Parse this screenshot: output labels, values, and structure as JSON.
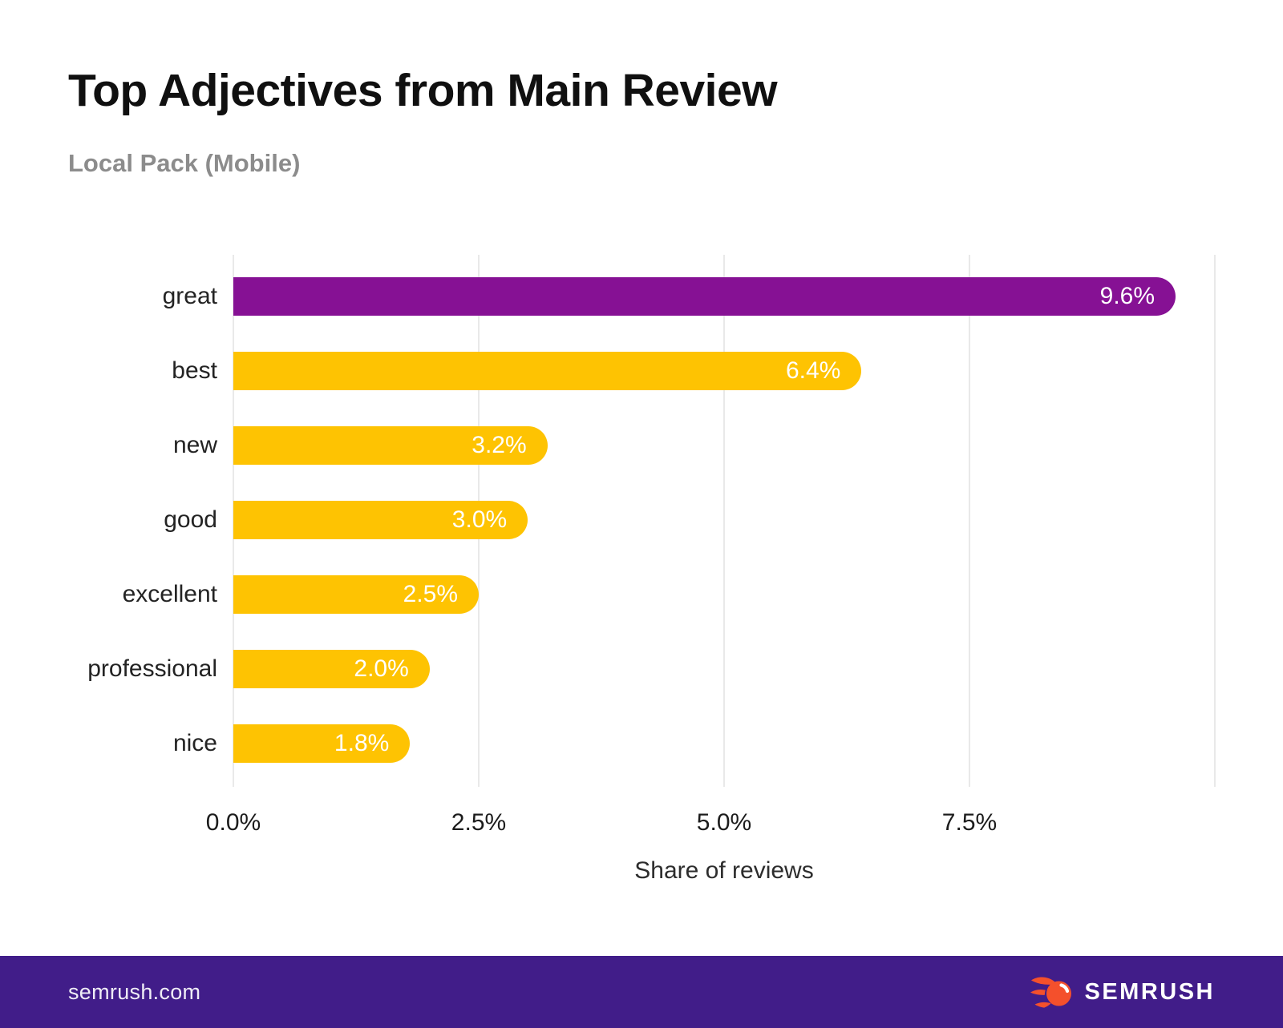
{
  "title": "Top Adjectives from Main Review",
  "subtitle": "Local Pack (Mobile)",
  "x_axis": {
    "label": "Share of reviews",
    "ticks": [
      "0.0%",
      "2.5%",
      "5.0%",
      "7.5%"
    ]
  },
  "footer": {
    "site": "semrush.com",
    "brand": "SEMRUSH"
  },
  "colors": {
    "highlight_bar": "#861194",
    "default_bar": "#FEC302",
    "footer_background": "#411D89",
    "logo_orange": "#F4502C",
    "value_label": "#FFFFFF",
    "gridline": "#E9E9E9"
  },
  "chart_data": {
    "type": "bar",
    "orientation": "horizontal",
    "title": "Top Adjectives from Main Review",
    "subtitle": "Local Pack (Mobile)",
    "xlabel": "Share of reviews",
    "xlim": [
      0,
      10
    ],
    "x_tick_step": 2.5,
    "x_tick_labels": [
      "0.0%",
      "2.5%",
      "5.0%",
      "7.5%"
    ],
    "grid": true,
    "legend": null,
    "categories": [
      "great",
      "best",
      "new",
      "good",
      "excellent",
      "professional",
      "nice"
    ],
    "values": [
      9.6,
      6.4,
      3.2,
      3.0,
      2.5,
      2.0,
      1.8
    ],
    "value_labels": [
      "9.6%",
      "6.4%",
      "3.2%",
      "3.0%",
      "2.5%",
      "2.0%",
      "1.8%"
    ],
    "highlight_index": 0
  }
}
